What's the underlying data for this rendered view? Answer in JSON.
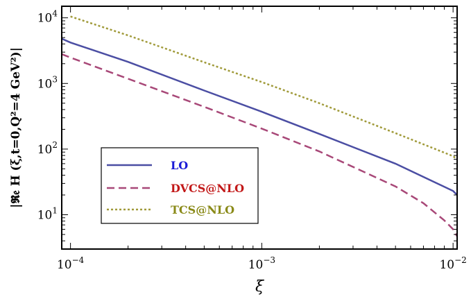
{
  "chart_data": {
    "type": "line",
    "xscale": "log",
    "yscale": "log",
    "xlim": [
      9e-05,
      0.0105
    ],
    "ylim": [
      3,
      15000
    ],
    "xlabel": "ξ",
    "ylabel": "|𝕽𝔢 H (ξ,t=0,Q²=4 GeV²)|",
    "x_ticks": [
      {
        "value": 0.0001,
        "base": "10",
        "exp": "−4"
      },
      {
        "value": 0.001,
        "base": "10",
        "exp": "−3"
      },
      {
        "value": 0.01,
        "base": "10",
        "exp": "−2"
      }
    ],
    "y_ticks": [
      {
        "value": 10,
        "base": "10",
        "exp": "1"
      },
      {
        "value": 100,
        "base": "10",
        "exp": "2"
      },
      {
        "value": 1000,
        "base": "10",
        "exp": "3"
      },
      {
        "value": 10000,
        "base": "10",
        "exp": "4"
      }
    ],
    "grid": false,
    "legend_position": "bottom-left",
    "series": [
      {
        "name": "LO",
        "color": "#4b4ea3",
        "text_color": "#1a1ad6",
        "style": "solid",
        "x": [
          9e-05,
          0.0001,
          0.0002,
          0.0005,
          0.001,
          0.002,
          0.005,
          0.01,
          0.0105
        ],
        "y": [
          4800,
          4200,
          2130,
          780,
          370,
          170,
          60,
          23,
          20
        ]
      },
      {
        "name": "DVCS@NLO",
        "color": "#a84878",
        "text_color": "#c21818",
        "style": "dashed",
        "x": [
          9e-05,
          0.0001,
          0.0002,
          0.0005,
          0.001,
          0.002,
          0.005,
          0.007,
          0.009,
          0.01,
          0.0105
        ],
        "y": [
          2800,
          2480,
          1180,
          440,
          205,
          92,
          27,
          15,
          8.2,
          6,
          4.7
        ]
      },
      {
        "name": "TCS@NLO",
        "color": "#a09a3a",
        "text_color": "#8a8a18",
        "style": "dotted",
        "x": [
          0.0001,
          0.0002,
          0.0005,
          0.001,
          0.002,
          0.005,
          0.01,
          0.0105
        ],
        "y": [
          10500,
          5400,
          2100,
          1050,
          500,
          175,
          78,
          70
        ]
      }
    ]
  }
}
